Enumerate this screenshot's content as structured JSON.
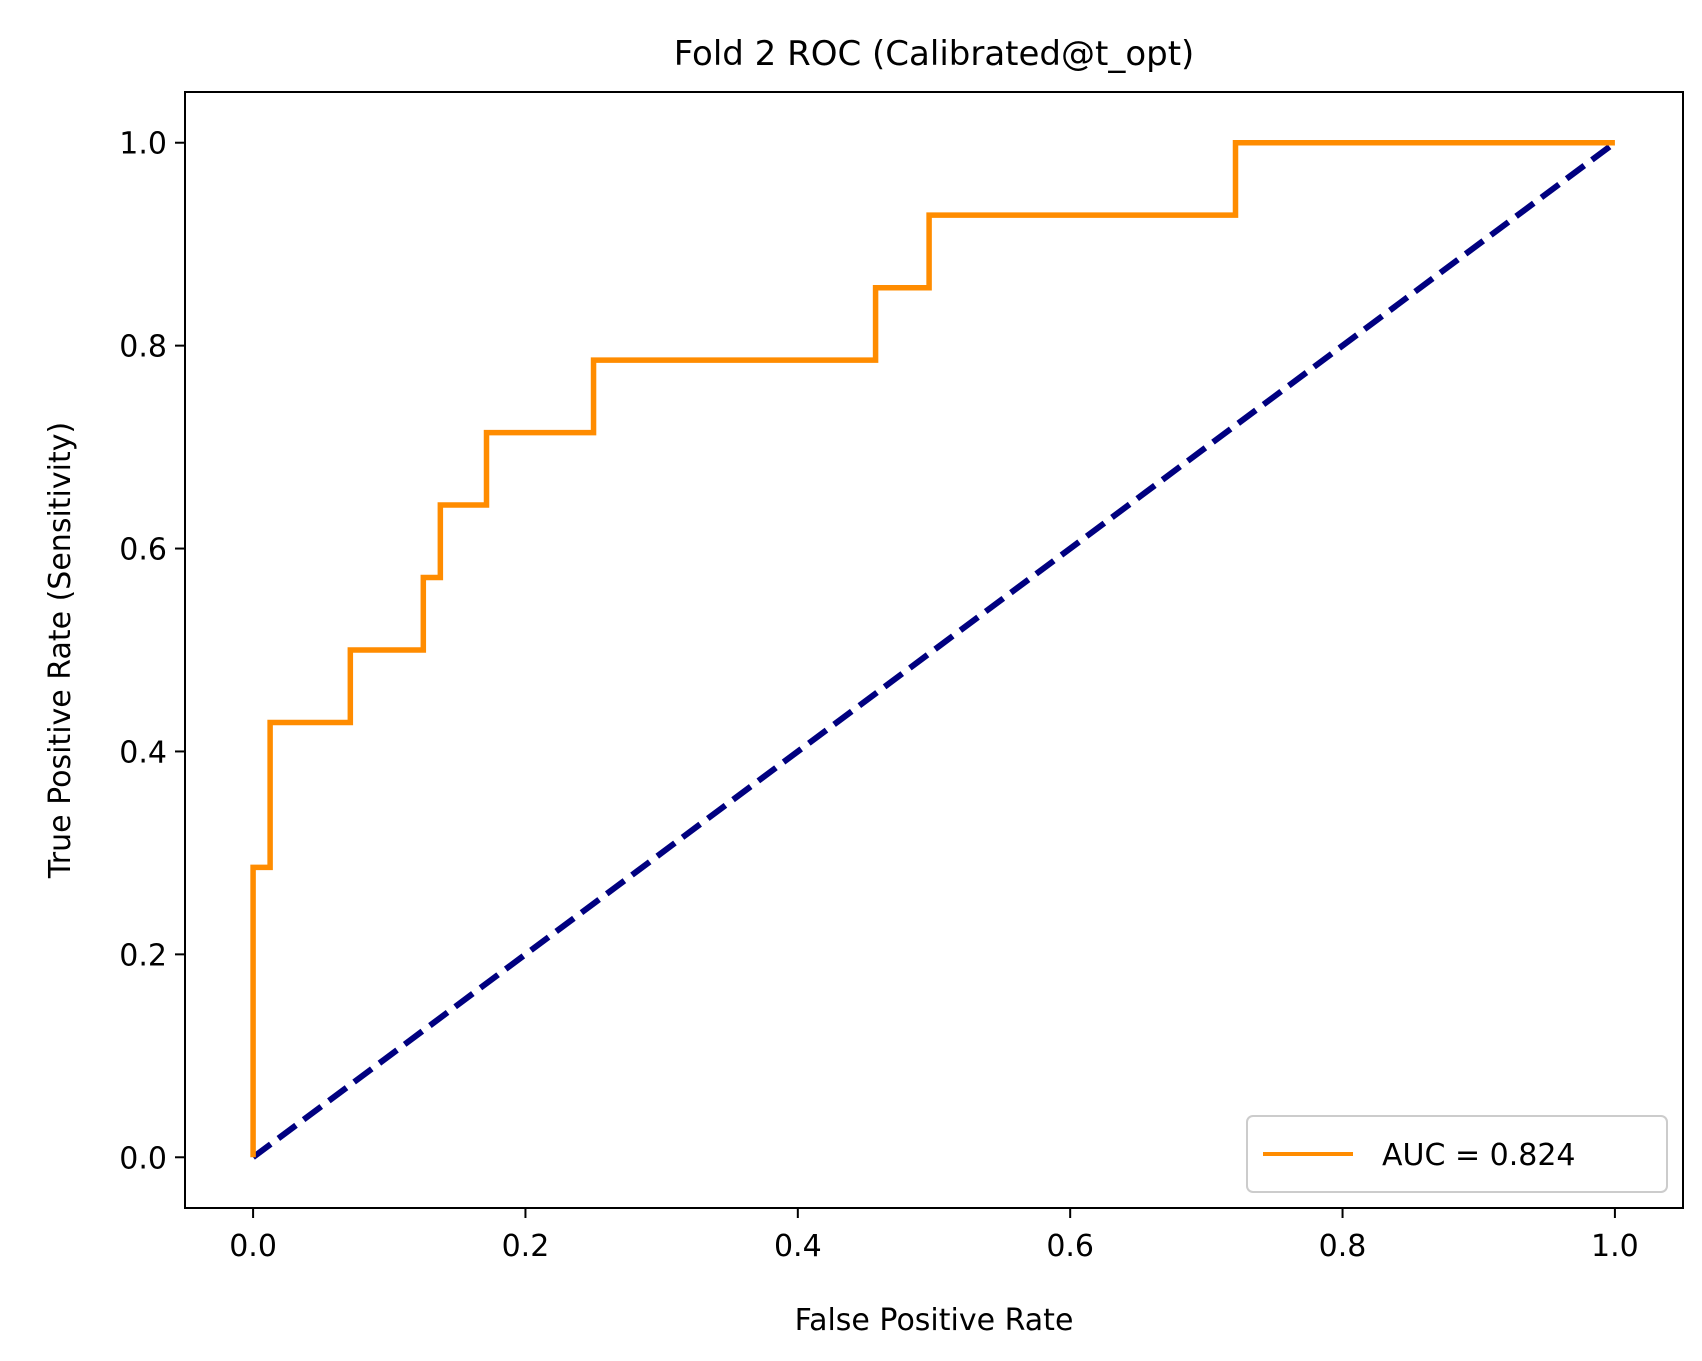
{
  "chart_data": {
    "type": "line",
    "title": "Fold 2 ROC (Calibrated@t_opt)",
    "xlabel": "False Positive Rate",
    "ylabel": "True Positive Rate (Sensitivity)",
    "xlim": [
      -0.05,
      1.05
    ],
    "ylim": [
      -0.05,
      1.05
    ],
    "xticks": [
      "0.0",
      "0.2",
      "0.4",
      "0.6",
      "0.8",
      "1.0"
    ],
    "yticks": [
      "0.0",
      "0.2",
      "0.4",
      "0.6",
      "0.8",
      "1.0"
    ],
    "grid": false,
    "legend_position": "lower-right",
    "series": [
      {
        "name": "AUC = 0.824",
        "color": "#ff8c00",
        "style": "solid",
        "x": [
          0.0,
          0.0,
          0.0125,
          0.0125,
          0.0714,
          0.0714,
          0.125,
          0.125,
          0.1375,
          0.1375,
          0.1714,
          0.1714,
          0.25,
          0.25,
          0.4571,
          0.4571,
          0.4964,
          0.4964,
          0.7214,
          0.7214,
          1.0
        ],
        "y": [
          0.0,
          0.2857,
          0.2857,
          0.4286,
          0.4286,
          0.5,
          0.5,
          0.5714,
          0.5714,
          0.6429,
          0.6429,
          0.7143,
          0.7143,
          0.7857,
          0.7857,
          0.8571,
          0.8571,
          0.9286,
          0.9286,
          1.0,
          1.0
        ]
      },
      {
        "color": "#000080",
        "style": "dashed",
        "x": [
          0.0,
          1.0
        ],
        "y": [
          0.0,
          1.0
        ]
      }
    ]
  }
}
